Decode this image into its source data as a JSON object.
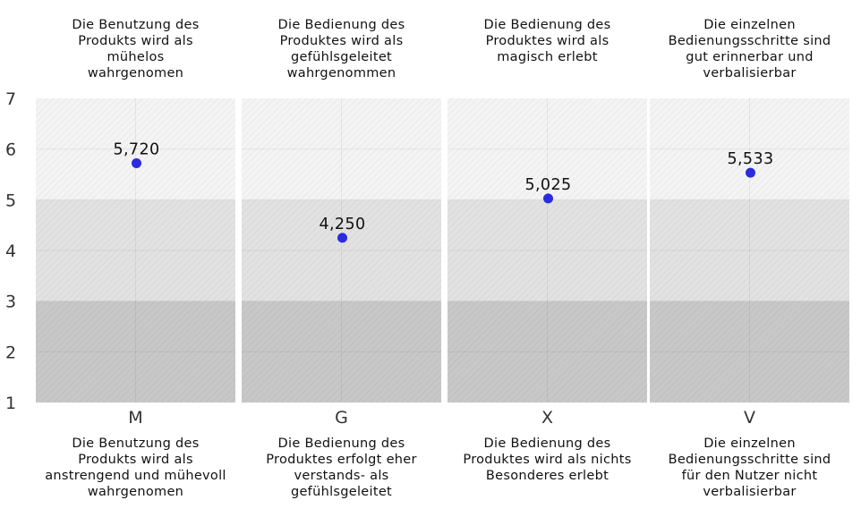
{
  "chart_data": {
    "type": "scatter",
    "ylim": [
      1,
      7
    ],
    "yticks": [
      "1",
      "2",
      "3",
      "4",
      "5",
      "6",
      "7"
    ],
    "bands": [
      {
        "from": 1,
        "to": 3,
        "color": "#c8c8c8"
      },
      {
        "from": 3,
        "to": 5,
        "color": "#e2e2e2"
      },
      {
        "from": 5,
        "to": 7,
        "color": "#f4f4f4"
      }
    ],
    "point_color": "#2b2bdf",
    "categories": [
      "M",
      "G",
      "X",
      "V"
    ],
    "values": [
      5.72,
      4.25,
      5.025,
      5.533
    ],
    "value_labels": [
      "5,720",
      "4,250",
      "5,025",
      "5,533"
    ],
    "top_captions": [
      "Die Benutzung des\nProdukts wird als\nmühelos\nwahrgenomen",
      "Die Bedienung des\nProduktes wird als\ngefühlsgeleitet\nwahrgenommen",
      "Die Bedienung des\nProduktes wird als\nmagisch erlebt",
      "Die einzelnen\nBedienungsschritte sind\ngut erinnerbar und\nverbalisierbar"
    ],
    "bottom_captions": [
      "Die Benutzung des\nProdukts wird als\nanstrengend und mühevoll\nwahrgenomen",
      "Die Bedienung des\nProduktes erfolgt eher\nverstands- als\ngefühlsgeleitet",
      "Die Bedienung des\nProduktes wird als nichts\nBesonderes erlebt",
      "Die einzelnen\nBedienungsschritte sind\nfür den Nutzer nicht\nverbalisierbar"
    ]
  }
}
